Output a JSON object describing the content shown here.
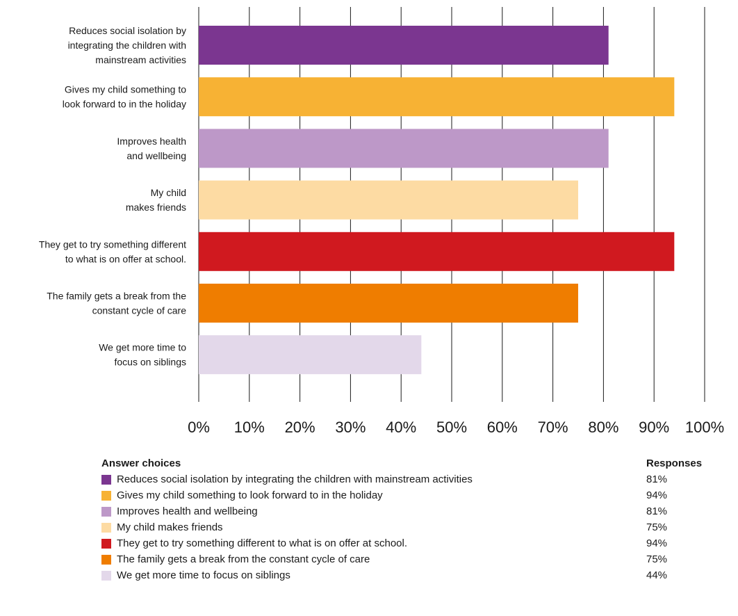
{
  "chart_data": {
    "type": "bar",
    "orientation": "horizontal",
    "categories": [
      [
        "Reduces social isolation by",
        "integrating the children with",
        "mainstream activities"
      ],
      [
        "Gives my child something to",
        "look forward to in the holiday"
      ],
      [
        "Improves health",
        "and wellbeing"
      ],
      [
        "My child",
        "makes friends"
      ],
      [
        "They get to try something different",
        "to what is on offer at school."
      ],
      [
        "The family gets a break from the",
        "constant cycle of care"
      ],
      [
        "We get more time to",
        "focus on siblings"
      ]
    ],
    "values": [
      81,
      94,
      81,
      75,
      94,
      75,
      44
    ],
    "colors": [
      "#7b3690",
      "#f7b234",
      "#bd98c8",
      "#fddba3",
      "#d0191f",
      "#ef7d00",
      "#e3d8ea"
    ],
    "xlim": [
      0,
      100
    ],
    "xticks": [
      "0%",
      "10%",
      "20%",
      "30%",
      "40%",
      "50%",
      "60%",
      "70%",
      "80%",
      "90%",
      "100%"
    ],
    "grid": "vertical",
    "legend": {
      "header_choices": "Answer choices",
      "header_responses": "Responses",
      "items": [
        {
          "label": "Reduces social isolation by integrating the children with mainstream activities",
          "value": "81%",
          "color": "#7b3690"
        },
        {
          "label": "Gives my child something to look forward to in the holiday",
          "value": "94%",
          "color": "#f7b234"
        },
        {
          "label": "Improves health and wellbeing",
          "value": "81%",
          "color": "#bd98c8"
        },
        {
          "label": "My child makes friends",
          "value": "75%",
          "color": "#fddba3"
        },
        {
          "label": "They get to try something different to what is on offer at school.",
          "value": "94%",
          "color": "#d0191f"
        },
        {
          "label": "The family gets a break from the constant cycle of care",
          "value": "75%",
          "color": "#ef7d00"
        },
        {
          "label": "We get more time to focus on siblings",
          "value": "44%",
          "color": "#e3d8ea"
        }
      ]
    }
  }
}
